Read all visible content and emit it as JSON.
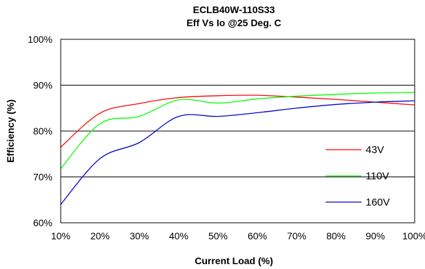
{
  "chart_data": {
    "type": "line",
    "title": "ECLB40W-110S33",
    "subtitle": "Eff Vs Io @25 Deg. C",
    "xlabel": "Current Load (%)",
    "ylabel": "Efficiency (%)",
    "xlim": [
      10,
      100
    ],
    "ylim": [
      60,
      100
    ],
    "x_ticks": [
      10,
      20,
      30,
      40,
      50,
      60,
      70,
      80,
      90,
      100
    ],
    "x_tick_labels": [
      "10%",
      "20%",
      "30%",
      "40%",
      "50%",
      "60%",
      "70%",
      "80%",
      "90%",
      "100%"
    ],
    "y_ticks": [
      60,
      70,
      80,
      90,
      100
    ],
    "y_tick_labels": [
      "60%",
      "70%",
      "80%",
      "90%",
      "100%"
    ],
    "grid": "horizontal",
    "legend_position": "right",
    "x": [
      10,
      20,
      30,
      40,
      50,
      60,
      70,
      80,
      90,
      100
    ],
    "series": [
      {
        "name": "43V",
        "color": "#ff0000",
        "values": [
          76.5,
          83.9,
          86.0,
          87.3,
          87.7,
          87.8,
          87.4,
          86.9,
          86.3,
          85.7
        ]
      },
      {
        "name": "110V",
        "color": "#00ff00",
        "values": [
          71.8,
          81.6,
          83.2,
          86.8,
          86.1,
          87.0,
          87.6,
          88.0,
          88.3,
          88.4
        ]
      },
      {
        "name": "160V",
        "color": "#0000cc",
        "values": [
          64.0,
          74.0,
          77.5,
          83.2,
          83.2,
          84.0,
          85.0,
          85.8,
          86.3,
          86.6
        ]
      }
    ]
  }
}
